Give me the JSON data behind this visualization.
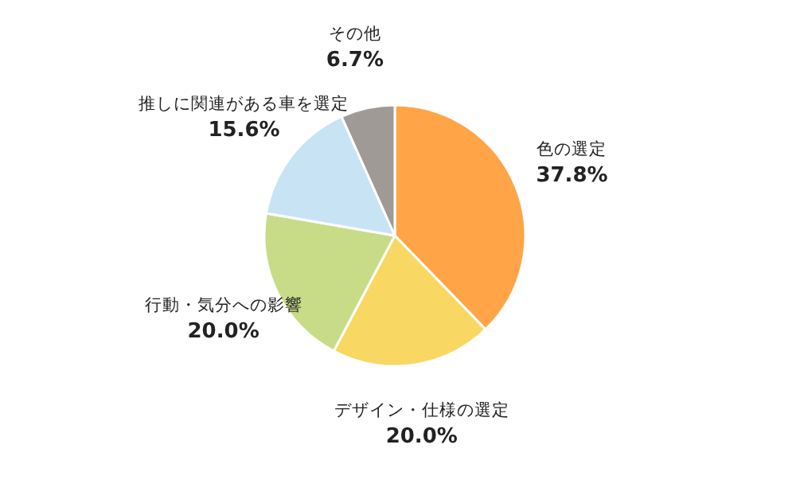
{
  "chart_data": {
    "type": "pie",
    "categories": [
      "色の選定",
      "デザイン・仕様の選定",
      "行動・気分への影響",
      "推しに関連がある車を選定",
      "その他"
    ],
    "values": [
      37.8,
      20.0,
      20.0,
      15.6,
      6.7
    ],
    "value_labels": [
      "37.8%",
      "20.0%",
      "20.0%",
      "15.6%",
      "6.7%"
    ],
    "colors": [
      "#ffa548",
      "#f8d862",
      "#c8dc88",
      "#c8e4f4",
      "#a09a96"
    ]
  }
}
